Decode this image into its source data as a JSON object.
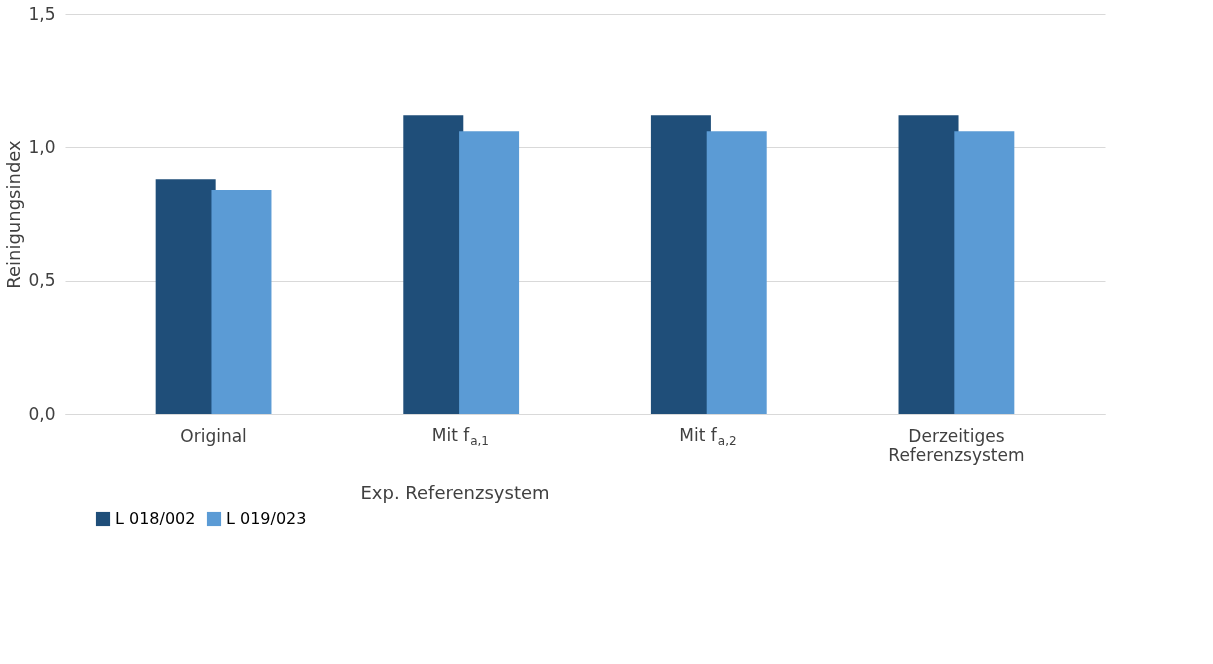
{
  "chart_data": {
    "type": "bar",
    "ylabel": "Reinigungsindex",
    "categories": [
      "Original",
      "Mit f$_{a,1}$",
      "Mit f$_{a,2}$",
      "Derzeitiges Referenzsystem"
    ],
    "series": [
      {
        "name": "L 018/002",
        "color": "#1f4e79",
        "values": [
          0.88,
          1.12,
          1.12,
          1.12
        ]
      },
      {
        "name": "L 019/023",
        "color": "#5b9bd5",
        "values": [
          0.84,
          1.06,
          1.06,
          1.06
        ]
      }
    ],
    "ylim": [
      0,
      1.5
    ],
    "yticks": [
      {
        "value": 0,
        "label": "0,0"
      },
      {
        "value": 0.5,
        "label": "0,5"
      },
      {
        "value": 1,
        "label": "1,0"
      },
      {
        "value": 1.5,
        "label": "1,5"
      }
    ],
    "grid": "y",
    "legend": "bottom",
    "annotations": [
      "Exp. Referenzsystem"
    ]
  }
}
